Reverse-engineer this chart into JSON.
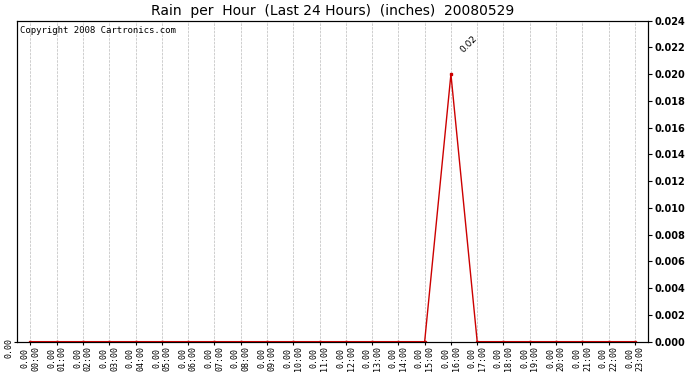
{
  "title": "Rain  per  Hour  (Last 24 Hours)  (inches)  20080529",
  "copyright_text": "Copyright 2008 Cartronics.com",
  "hours": [
    "00:00",
    "01:00",
    "02:00",
    "03:00",
    "04:00",
    "05:00",
    "06:00",
    "07:00",
    "08:00",
    "09:00",
    "10:00",
    "11:00",
    "12:00",
    "13:00",
    "14:00",
    "15:00",
    "16:00",
    "17:00",
    "18:00",
    "19:00",
    "20:00",
    "21:00",
    "22:00",
    "23:00"
  ],
  "values": [
    0,
    0,
    0,
    0,
    0,
    0,
    0,
    0,
    0,
    0,
    0,
    0,
    0,
    0,
    0,
    0,
    0.02,
    0,
    0,
    0,
    0,
    0,
    0,
    0
  ],
  "peak_label": "0.02",
  "peak_index": 16,
  "line_color": "#cc0000",
  "marker_color": "#cc0000",
  "grid_color": "#bbbbbb",
  "bg_color": "#ffffff",
  "plot_bg_color": "#ffffff",
  "ylim": [
    0,
    0.024
  ],
  "yticks": [
    0.0,
    0.002,
    0.004,
    0.006,
    0.008,
    0.01,
    0.012,
    0.014,
    0.016,
    0.018,
    0.02,
    0.022,
    0.024
  ],
  "title_fontsize": 10,
  "tick_fontsize": 6,
  "copyright_fontsize": 6.5,
  "ylabel_fontsize": 8
}
